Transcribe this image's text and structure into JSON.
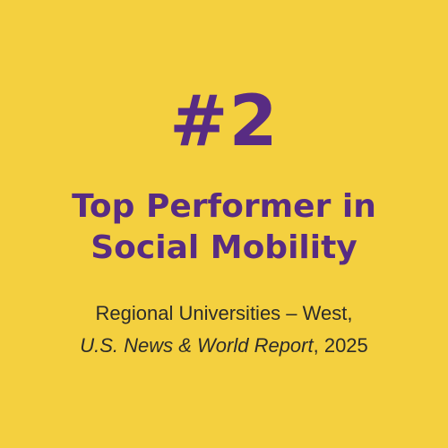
{
  "rank": "#2",
  "headline": {
    "line1": "Top Performer in",
    "line2": "Social Mobility"
  },
  "citation": {
    "category": "Regional Universities – West,",
    "publication": "U.S. News & World Report",
    "year_suffix": ", 2025"
  },
  "colors": {
    "background": "#F4D03F",
    "accent": "#582C83",
    "text": "#2B2B2B"
  }
}
